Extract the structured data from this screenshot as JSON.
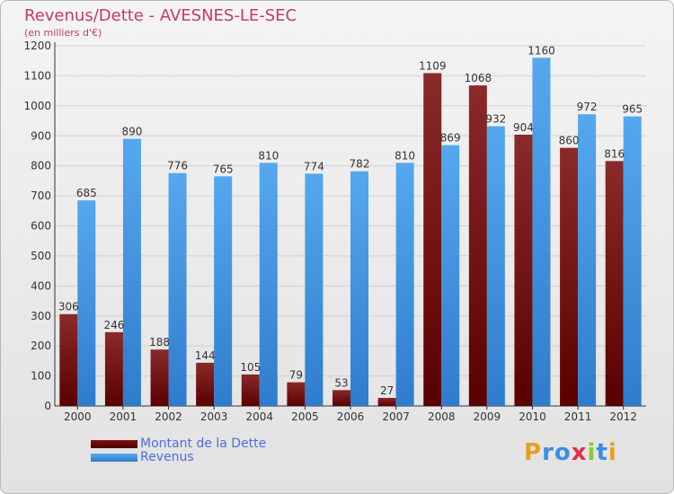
{
  "header": {
    "title": "Revenus/Dette - AVESNES-LE-SEC",
    "subtitle": "(en milliers d'€)"
  },
  "legend": {
    "items": [
      {
        "label": "Montant de la Dette",
        "color": "#6b0000"
      },
      {
        "label": "Revenus",
        "color": "#3a8ee0"
      }
    ]
  },
  "logo": {
    "letters": [
      "P",
      "r",
      "o",
      "x",
      "i",
      "t",
      "i"
    ],
    "colors": [
      "#e8a020",
      "#3a8ee0",
      "#3a8ee0",
      "#e03050",
      "#8cc63f",
      "#3a8ee0",
      "#e8a020"
    ]
  },
  "chart_data": {
    "type": "bar",
    "title": "Revenus/Dette - AVESNES-LE-SEC",
    "subtitle": "(en milliers d'€)",
    "categories": [
      "2000",
      "2001",
      "2002",
      "2003",
      "2004",
      "2005",
      "2006",
      "2007",
      "2008",
      "2009",
      "2010",
      "2011",
      "2012"
    ],
    "series": [
      {
        "name": "Montant de la Dette",
        "color": "#7a1a1a",
        "values": [
          306,
          246,
          188,
          144,
          105,
          79,
          53,
          27,
          1109,
          1068,
          904,
          860,
          816
        ]
      },
      {
        "name": "Revenus",
        "color": "#3a8ee0",
        "values": [
          685,
          890,
          776,
          765,
          810,
          774,
          782,
          810,
          869,
          932,
          1160,
          972,
          965
        ]
      }
    ],
    "ylim": [
      0,
      1200
    ],
    "yticks": [
      0,
      100,
      200,
      300,
      400,
      500,
      600,
      700,
      800,
      900,
      1000,
      1100,
      1200
    ],
    "grid": true,
    "legend_position": "bottom-left"
  }
}
